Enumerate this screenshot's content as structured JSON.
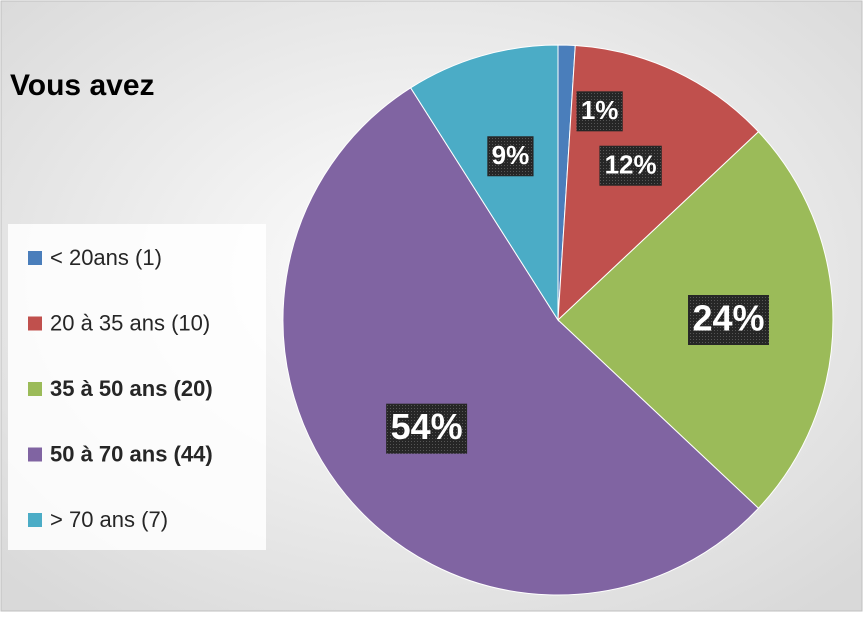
{
  "chart_data": {
    "type": "pie",
    "title": "Vous avez",
    "categories": [
      "< 20ans (1)",
      "20 à 35 ans (10)",
      "35 à 50 ans (20)",
      "50 à 70 ans (44)",
      "> 70 ans (7)"
    ],
    "values": [
      1,
      12,
      24,
      54,
      9
    ],
    "value_labels": [
      "1%",
      "12%",
      "24%",
      "54%",
      "9%"
    ],
    "colors": [
      "#4a7ebb",
      "#c0504d",
      "#9bbb59",
      "#8064a2",
      "#4bacc6"
    ],
    "legend": "left",
    "legend_bold": [
      false,
      false,
      true,
      true,
      false
    ]
  }
}
